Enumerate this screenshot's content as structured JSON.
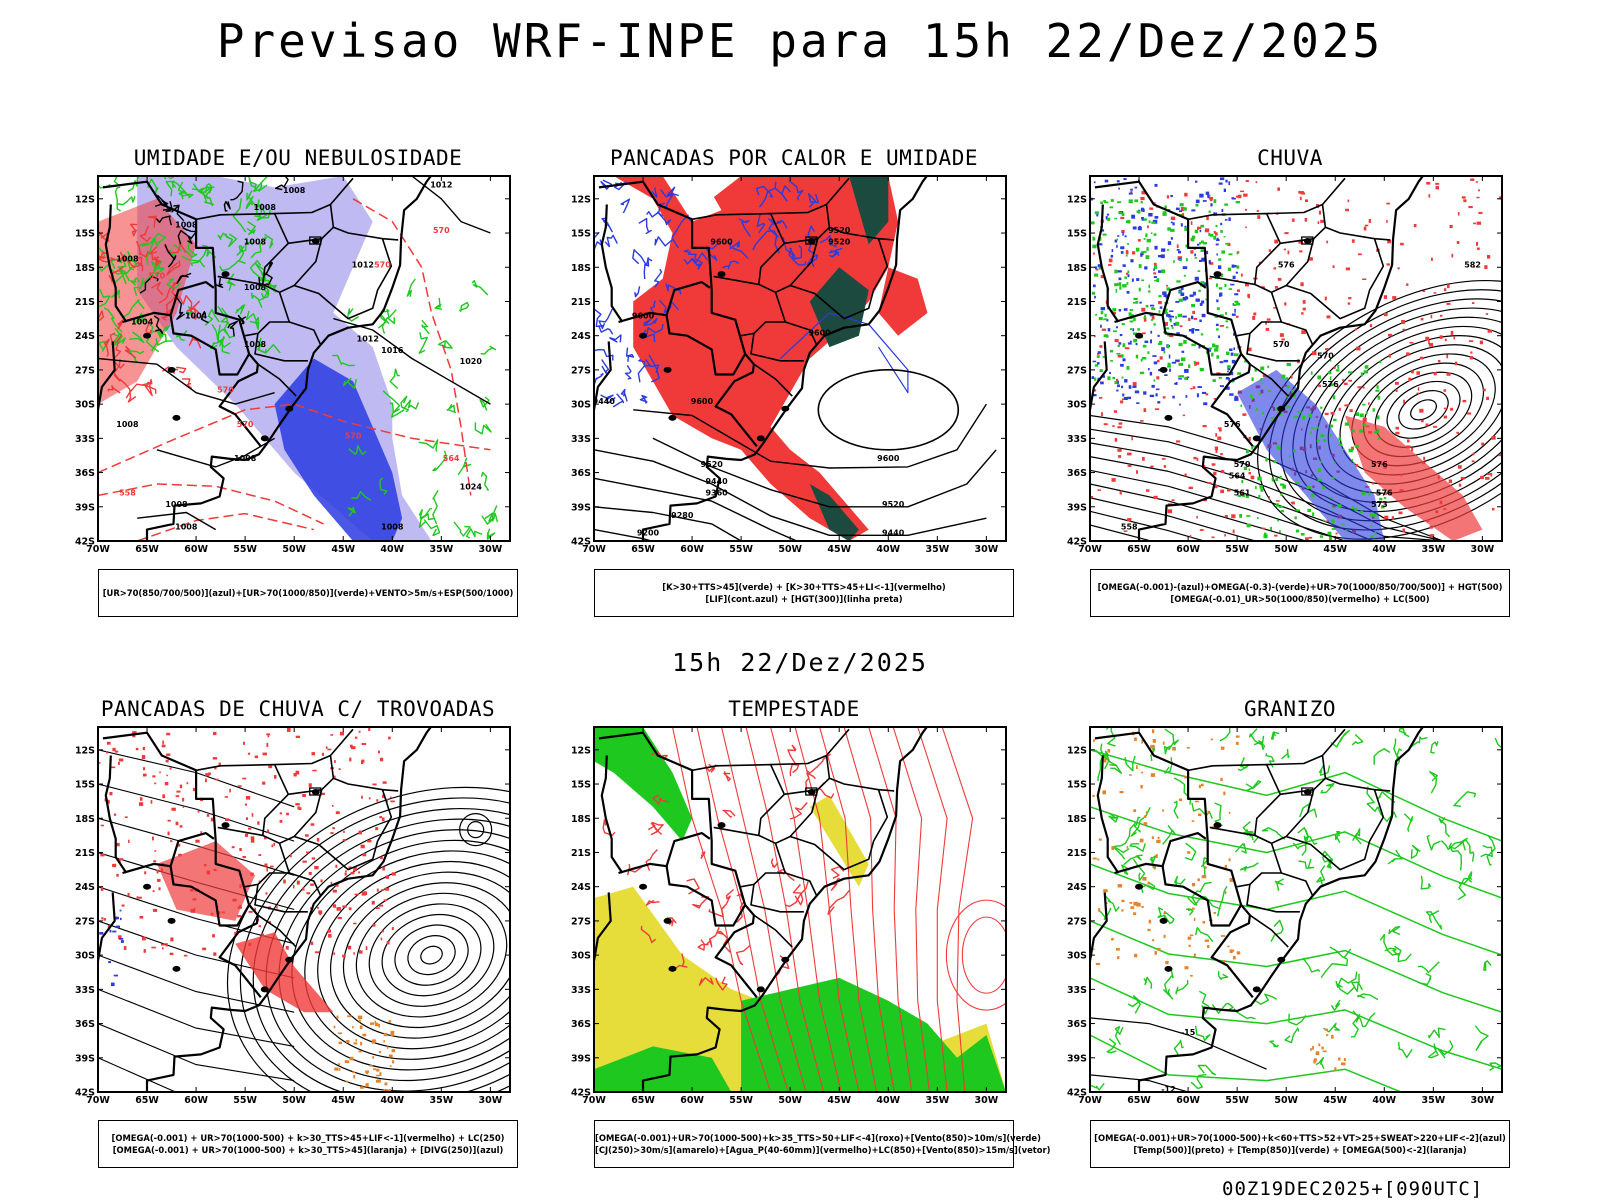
{
  "title": "Previsao WRF-INPE  para 15h 22/Dez/2025",
  "mid_time": "15h 22/Dez/2025",
  "footer": "00Z19DEC2025+[090UTC]",
  "colors": {
    "red": "#f03a3a",
    "green": "#1ec81e",
    "blue": "#2a3be0",
    "lavender": "#a9a3ee",
    "darkteal": "#1d4a3e",
    "yellow": "#e6dc3a",
    "orange": "#e5822a",
    "black": "#000000"
  },
  "chart_data": {
    "type": "map-panels",
    "lat_ticks": [
      "12S",
      "15S",
      "18S",
      "21S",
      "24S",
      "27S",
      "30S",
      "33S",
      "36S",
      "39S",
      "42S"
    ],
    "lon_ticks": [
      "70W",
      "65W",
      "60W",
      "55W",
      "50W",
      "45W",
      "40W",
      "35W",
      "30W"
    ],
    "lat_range": [
      -42,
      -10
    ],
    "lon_range": [
      -70,
      -28
    ],
    "panels": [
      {
        "id": "umidade",
        "title": "UMIDADE E/OU NEBULOSIDADE",
        "legend": [
          "[UR>70(850/700/500)](azul)+[UR>70(1000/850)](verde)+VENTO>5m/s+ESP(500/1000)"
        ],
        "contour_labels": [
          {
            "text": "1008",
            "lon": -50,
            "lat": -11.5
          },
          {
            "text": "1008",
            "lon": -53,
            "lat": -13
          },
          {
            "text": "1008",
            "lon": -61,
            "lat": -14.5
          },
          {
            "text": "1008",
            "lon": -54,
            "lat": -16
          },
          {
            "text": "1008",
            "lon": -67,
            "lat": -17.5
          },
          {
            "text": "1008",
            "lon": -54,
            "lat": -20
          },
          {
            "text": "1004",
            "lon": -60,
            "lat": -22.5
          },
          {
            "text": "1004",
            "lon": -65.5,
            "lat": -23
          },
          {
            "text": "1008",
            "lon": -54,
            "lat": -25
          },
          {
            "text": "1012",
            "lon": -43,
            "lat": -18
          },
          {
            "text": "1012",
            "lon": -42.5,
            "lat": -24.5
          },
          {
            "text": "1016",
            "lon": -40,
            "lat": -25.5
          },
          {
            "text": "1020",
            "lon": -32,
            "lat": -26.5
          },
          {
            "text": "1024",
            "lon": -32,
            "lat": -37.5
          },
          {
            "text": "1008",
            "lon": -67,
            "lat": -32
          },
          {
            "text": "1008",
            "lon": -55,
            "lat": -35
          },
          {
            "text": "1008",
            "lon": -62,
            "lat": -39
          },
          {
            "text": "1008",
            "lon": -61,
            "lat": -41
          },
          {
            "text": "1008",
            "lon": -40,
            "lat": -41
          },
          {
            "text": "1012",
            "lon": -35,
            "lat": -11
          },
          {
            "text": "570",
            "lon": -35,
            "lat": -15
          },
          {
            "text": "570",
            "lon": -41,
            "lat": -18
          },
          {
            "text": "570",
            "lon": -64,
            "lat": -19
          },
          {
            "text": "570",
            "lon": -57,
            "lat": -29
          },
          {
            "text": "570",
            "lon": -55,
            "lat": -32
          },
          {
            "text": "570",
            "lon": -44,
            "lat": -33
          },
          {
            "text": "564",
            "lon": -34,
            "lat": -35
          },
          {
            "text": "558",
            "lon": -67,
            "lat": -38
          }
        ]
      },
      {
        "id": "pancadas_calor",
        "title": "PANCADAS POR CALOR E UMIDADE",
        "legend": [
          "[K>30+TTS>45](verde) + [K>30+TTS>45+LI<-1](vermelho)",
          "[LIF](cont.azul) + [HGT(300)](linha preta)"
        ],
        "contour_labels": [
          {
            "text": "9600",
            "lon": -57,
            "lat": -16
          },
          {
            "text": "9520",
            "lon": -45,
            "lat": -15
          },
          {
            "text": "9520",
            "lon": -45,
            "lat": -16
          },
          {
            "text": "9600",
            "lon": -65,
            "lat": -22.5
          },
          {
            "text": "9600",
            "lon": -47,
            "lat": -24
          },
          {
            "text": "9440",
            "lon": -69,
            "lat": -30
          },
          {
            "text": "9600",
            "lon": -59,
            "lat": -30
          },
          {
            "text": "9520",
            "lon": -58,
            "lat": -35.5
          },
          {
            "text": "9440",
            "lon": -57.5,
            "lat": -37
          },
          {
            "text": "9360",
            "lon": -57.5,
            "lat": -38
          },
          {
            "text": "9280",
            "lon": -61,
            "lat": -40
          },
          {
            "text": "9200",
            "lon": -64.5,
            "lat": -41.5
          },
          {
            "text": "9600",
            "lon": -40,
            "lat": -35
          },
          {
            "text": "9520",
            "lon": -39.5,
            "lat": -39
          },
          {
            "text": "9440",
            "lon": -39.5,
            "lat": -41.5
          }
        ]
      },
      {
        "id": "chuva",
        "title": "CHUVA",
        "legend": [
          "[OMEGA(-0.001)-(azul)+OMEGA(-0.3)-(verde)+UR>70(1000/850/700/500)] + HGT(500)",
          "[OMEGA(-0.01)_UR>50(1000/850)(vermelho) + LC(500)"
        ],
        "contour_labels": [
          {
            "text": "582",
            "lon": -31,
            "lat": -18
          },
          {
            "text": "576",
            "lon": -50,
            "lat": -18
          },
          {
            "text": "570",
            "lon": -50.5,
            "lat": -25
          },
          {
            "text": "570",
            "lon": -46,
            "lat": -26
          },
          {
            "text": "576",
            "lon": -45.5,
            "lat": -28.5
          },
          {
            "text": "576",
            "lon": -55.5,
            "lat": -32
          },
          {
            "text": "570",
            "lon": -54.5,
            "lat": -35.5
          },
          {
            "text": "564",
            "lon": -55,
            "lat": -36.5
          },
          {
            "text": "561",
            "lon": -54.5,
            "lat": -38
          },
          {
            "text": "576",
            "lon": -40.5,
            "lat": -35.5
          },
          {
            "text": "576",
            "lon": -40,
            "lat": -38
          },
          {
            "text": "573",
            "lon": -40.5,
            "lat": -39
          },
          {
            "text": "558",
            "lon": -66,
            "lat": -41
          }
        ]
      },
      {
        "id": "trovoadas",
        "title": "PANCADAS DE CHUVA C/ TROVOADAS",
        "legend": [
          "[OMEGA(-0.001) + UR>70(1000-500) + k>30_TTS>45+LIF<-1](vermelho) + LC(250)",
          "[OMEGA(-0.001) + UR>70(1000-500) + k>30_TTS>45](laranja) + [DIVG(250)](azul)"
        ],
        "contour_labels": []
      },
      {
        "id": "tempestade",
        "title": "TEMPESTADE",
        "legend": [
          "[OMEGA(-0.001)+UR>70(1000-500)+k>35_TTS>50+LIF<-4](roxo)+[Vento(850)>10m/s](verde)",
          "[CJ(250)>30m/s](amarelo)+[Agua_P(40-60mm)](vermelho)+LC(850)+[Vento(850)>15m/s](vetor)"
        ],
        "contour_labels": []
      },
      {
        "id": "granizo",
        "title": "GRANIZO",
        "legend": [
          "[OMEGA(-0.001)+UR>70(1000-500)+k<60+TTS>52+VT>25+SWEAT>220+LIF<-2](azul)",
          "[Temp(500)](preto) + [Temp(850)](verde) + [OMEGA(500)<-2](laranja)"
        ],
        "contour_labels": [
          {
            "text": "-15",
            "lon": -60,
            "lat": -37
          },
          {
            "text": "-12",
            "lon": -62,
            "lat": -42
          }
        ]
      }
    ]
  }
}
